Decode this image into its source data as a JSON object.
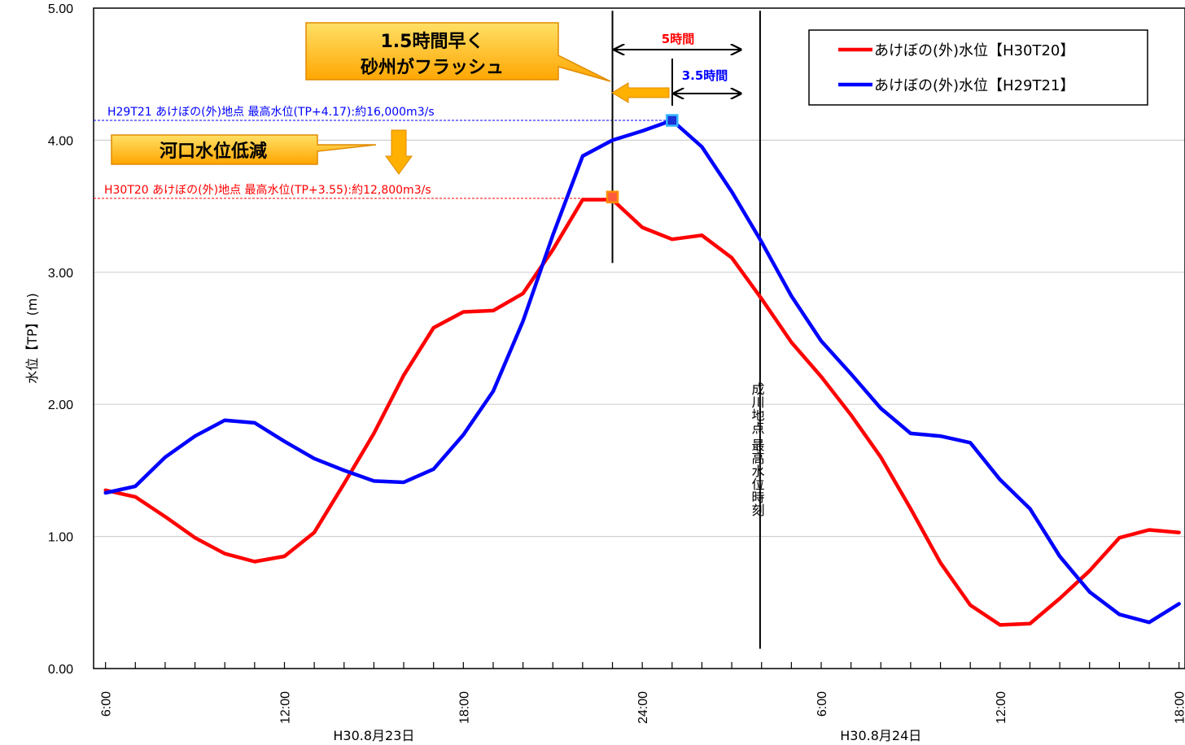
{
  "chart_data": {
    "type": "line",
    "ylabel": "水位【TP】(m)",
    "ylim": [
      0,
      5
    ],
    "yticks": [
      "0.00",
      "1.00",
      "2.00",
      "3.00",
      "4.00",
      "5.00"
    ],
    "xlim_hours": [
      5.6,
      42.2
    ],
    "xticks": [
      {
        "label": "6:00",
        "h": 6
      },
      {
        "label": "12:00",
        "h": 12
      },
      {
        "label": "18:00",
        "h": 18
      },
      {
        "label": "24:00",
        "h": 24
      },
      {
        "label": "6:00",
        "h": 30
      },
      {
        "label": "12:00",
        "h": 36
      },
      {
        "label": "18:00",
        "h": 42
      }
    ],
    "date_labels": [
      {
        "label": "H30.8月23日",
        "h": 15
      },
      {
        "label": "H30.8月24日",
        "h": 32
      }
    ],
    "grid": "horizontal",
    "legend": "top-right",
    "series": [
      {
        "name": "あけぼの(外)水位【H30T20】",
        "color": "#ff0000",
        "points": [
          [
            6,
            1.35
          ],
          [
            7,
            1.3
          ],
          [
            8,
            1.15
          ],
          [
            9,
            0.99
          ],
          [
            10,
            0.87
          ],
          [
            11,
            0.81
          ],
          [
            12,
            0.85
          ],
          [
            13,
            1.03
          ],
          [
            14,
            1.4
          ],
          [
            15,
            1.78
          ],
          [
            16,
            2.22
          ],
          [
            17,
            2.58
          ],
          [
            18,
            2.7
          ],
          [
            19,
            2.71
          ],
          [
            20,
            2.84
          ],
          [
            21,
            3.17
          ],
          [
            22,
            3.55
          ],
          [
            23,
            3.55
          ],
          [
            24,
            3.34
          ],
          [
            25,
            3.25
          ],
          [
            26,
            3.28
          ],
          [
            27,
            3.11
          ],
          [
            28,
            2.8
          ],
          [
            29,
            2.47
          ],
          [
            30,
            2.21
          ],
          [
            31,
            1.92
          ],
          [
            32,
            1.6
          ],
          [
            33,
            1.21
          ],
          [
            34,
            0.8
          ],
          [
            35,
            0.48
          ],
          [
            36,
            0.33
          ],
          [
            37,
            0.34
          ],
          [
            38,
            0.53
          ],
          [
            39,
            0.74
          ],
          [
            40,
            0.99
          ],
          [
            41,
            1.05
          ],
          [
            42,
            1.03
          ]
        ]
      },
      {
        "name": "あけぼの(外)水位【H29T21】",
        "color": "#0000ff",
        "points": [
          [
            6,
            1.33
          ],
          [
            7,
            1.38
          ],
          [
            8,
            1.6
          ],
          [
            9,
            1.76
          ],
          [
            10,
            1.88
          ],
          [
            11,
            1.86
          ],
          [
            12,
            1.72
          ],
          [
            13,
            1.59
          ],
          [
            14,
            1.5
          ],
          [
            15,
            1.42
          ],
          [
            16,
            1.41
          ],
          [
            17,
            1.51
          ],
          [
            18,
            1.77
          ],
          [
            19,
            2.1
          ],
          [
            20,
            2.63
          ],
          [
            21,
            3.28
          ],
          [
            22,
            3.88
          ],
          [
            23,
            4.0
          ],
          [
            24,
            4.07
          ],
          [
            25,
            4.15
          ],
          [
            26,
            3.95
          ],
          [
            27,
            3.61
          ],
          [
            28,
            3.23
          ],
          [
            29,
            2.82
          ],
          [
            30,
            2.48
          ],
          [
            31,
            2.23
          ],
          [
            32,
            1.97
          ],
          [
            33,
            1.78
          ],
          [
            34,
            1.76
          ],
          [
            35,
            1.71
          ],
          [
            36,
            1.43
          ],
          [
            37,
            1.21
          ],
          [
            38,
            0.85
          ],
          [
            39,
            0.58
          ],
          [
            40,
            0.41
          ],
          [
            41,
            0.35
          ],
          [
            42,
            0.49
          ]
        ]
      }
    ],
    "markers": [
      {
        "h": 23.0,
        "y": 3.57,
        "fill": "#ff5a3c",
        "stroke": "#ff8c00"
      },
      {
        "h": 25.0,
        "y": 4.15,
        "fill": "#1a2fd6",
        "stroke": "#33b5ff"
      }
    ],
    "ref_lines": [
      {
        "y": 4.15,
        "color": "#0000ff",
        "h0": 5.6,
        "h1": 25.0
      },
      {
        "y": 3.56,
        "color": "#ff0000",
        "h0": 5.6,
        "h1": 23.0
      }
    ],
    "vlines": [
      {
        "h": 23.0,
        "y0": 3.07,
        "y1": 4.98
      },
      {
        "h": 27.95,
        "y0": 0.15,
        "y1": 4.98
      }
    ],
    "annotations": {
      "flash_callout": [
        "1.5時間早く",
        "砂州がフラッシュ"
      ],
      "mouth_callout": "河口水位低減",
      "h29_label": "H29T21 あけぼの(外)地点 最高水位(TP+4.17):約16,000m3/s",
      "h30_label": "H30T20 あけぼの(外)地点 最高水位(TP+3.55):約12,800m3/s",
      "span_5h": "5時間",
      "span_35h": "3.5時間",
      "narukawa_peak": "成川地点 最高水位時刻"
    }
  }
}
